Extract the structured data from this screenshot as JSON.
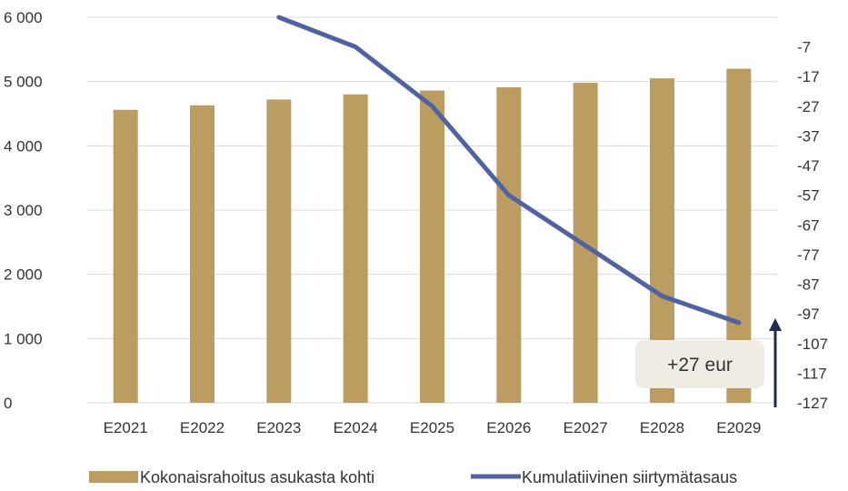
{
  "chart_data": {
    "type": "bar",
    "categories": [
      "E2021",
      "E2022",
      "E2023",
      "E2024",
      "E2025",
      "E2026",
      "E2027",
      "E2028",
      "E2029"
    ],
    "series": [
      {
        "name": "Kokonaisrahoitus asukasta kohti",
        "type": "bar",
        "axis": "left",
        "color": "#bb9d62",
        "values": [
          4560,
          4630,
          4720,
          4800,
          4860,
          4910,
          4980,
          5050,
          5200
        ]
      },
      {
        "name": "Kumulatiivinen siirtymätasaus",
        "type": "line",
        "axis": "right",
        "color": "#5063a0",
        "values": [
          null,
          null,
          3,
          -7,
          -27,
          -57,
          -74,
          -91,
          -100
        ]
      }
    ],
    "left_axis": {
      "ylim": [
        0,
        6000
      ],
      "ticks": [
        0,
        1000,
        2000,
        3000,
        4000,
        5000,
        6000
      ],
      "tick_labels": [
        "0",
        "1 000",
        "2 000",
        "3 000",
        "4 000",
        "5 000",
        "6 000"
      ]
    },
    "right_axis": {
      "ylim": [
        -127,
        3
      ],
      "ticks": [
        -127,
        -117,
        -107,
        -97,
        -87,
        -77,
        -67,
        -57,
        -47,
        -37,
        -27,
        -17,
        -7
      ],
      "tick_labels": [
        "-127",
        "-117",
        "-107",
        "-97",
        "-87",
        "-77",
        "-67",
        "-57",
        "-47",
        "-37",
        "-27",
        "-17",
        "-7"
      ]
    },
    "grid": true,
    "legend": "bottom",
    "annotation": {
      "text": "+27 eur",
      "arrow": "up",
      "box_color": "#f1ece3",
      "arrow_color": "#1f2d4d"
    },
    "title": "",
    "xlabel": "",
    "ylabel": ""
  }
}
